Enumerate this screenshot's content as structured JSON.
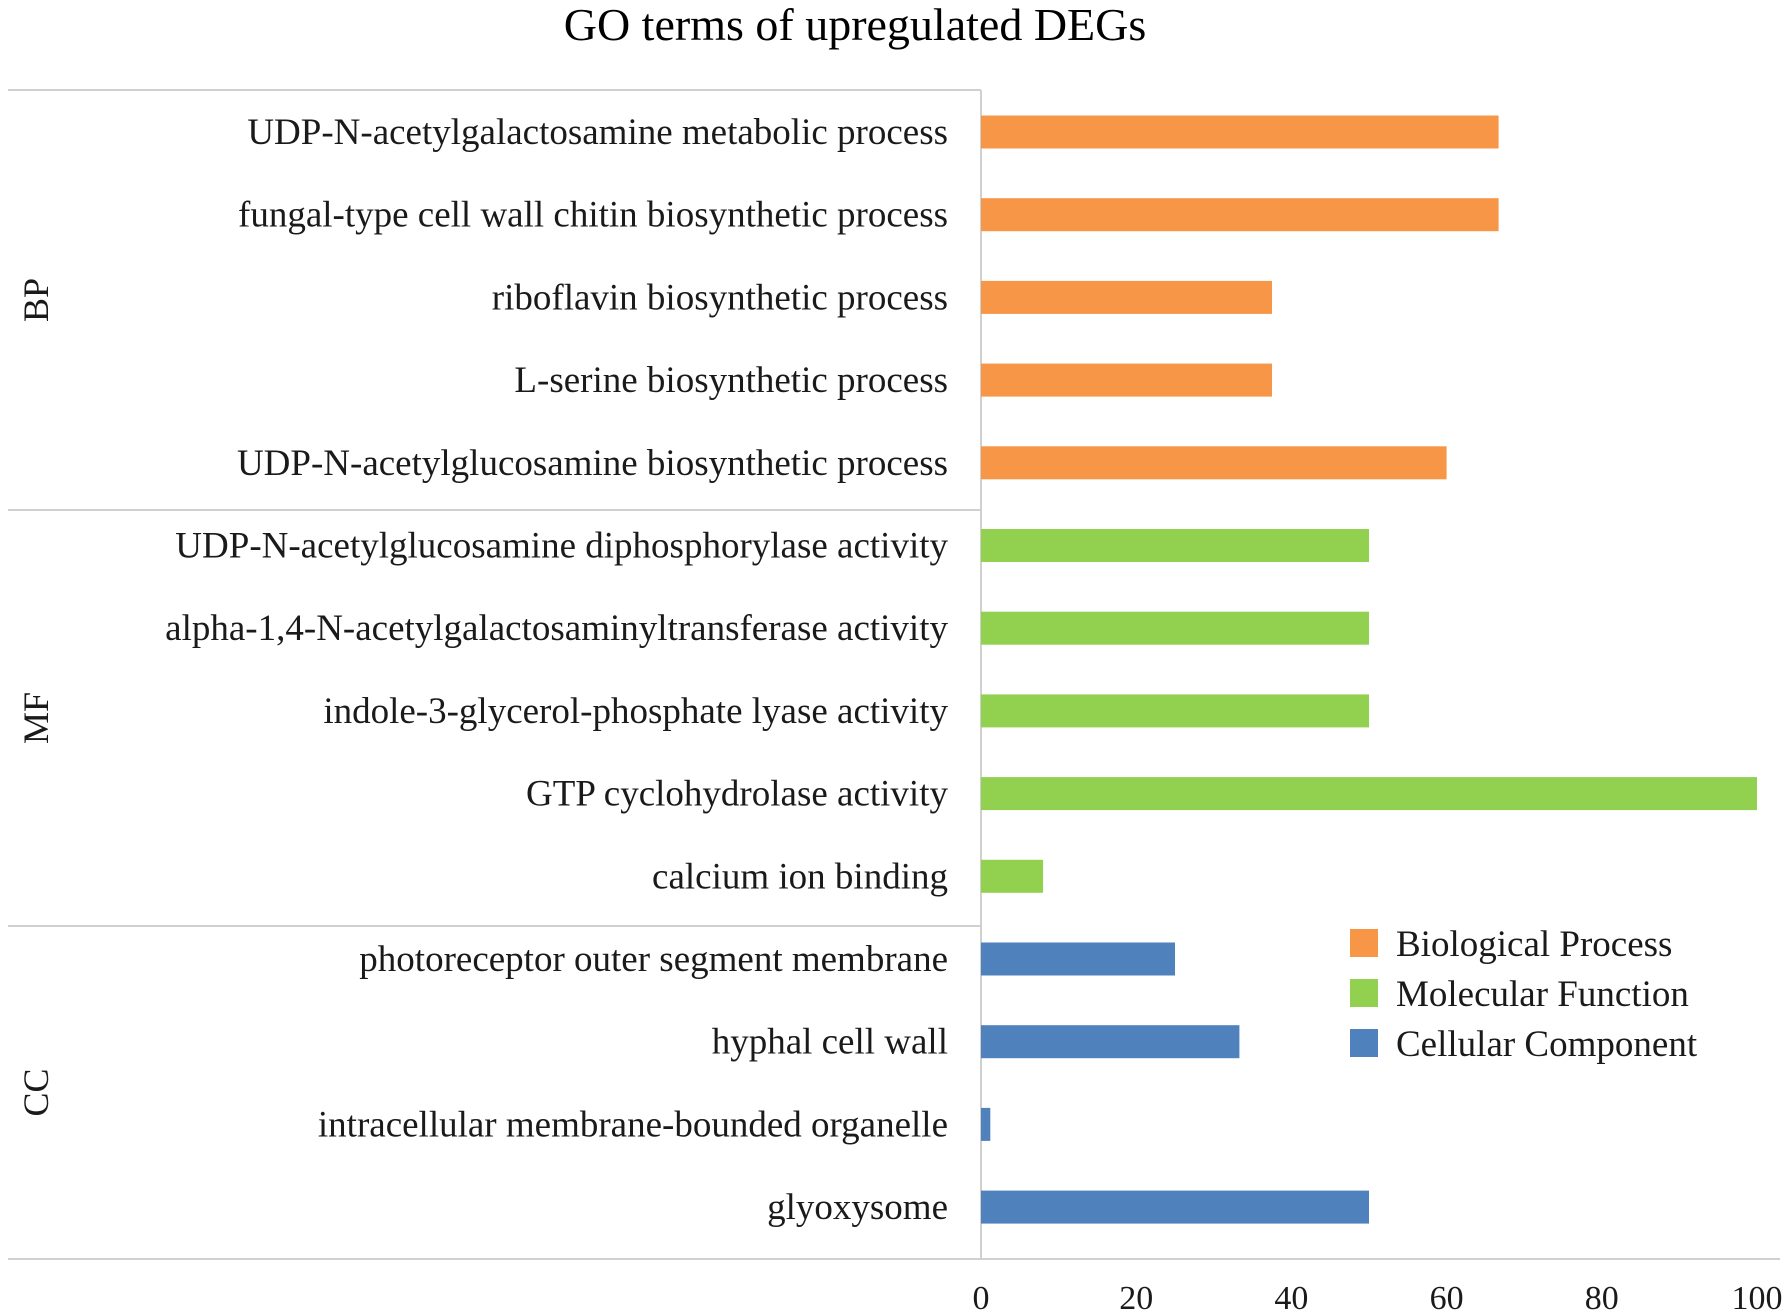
{
  "chart_data": {
    "type": "bar",
    "orientation": "horizontal",
    "title": "GO terms of upregulated DEGs",
    "xlabel": "",
    "ylabel": "",
    "xlim": [
      0,
      100
    ],
    "x_ticks": [
      0,
      20,
      40,
      60,
      80,
      100
    ],
    "grid": false,
    "legend_position": "bottom-right",
    "colors": {
      "Biological Process": "#F79646",
      "Molecular Function": "#92D050",
      "Cellular Component": "#4F81BD"
    },
    "groups": [
      {
        "code": "BP",
        "name": "Biological Process",
        "bars": [
          {
            "label": "UDP-N-acetylgalactosamine metabolic process",
            "value": 66.7
          },
          {
            "label": "fungal-type cell wall chitin biosynthetic process",
            "value": 66.7
          },
          {
            "label": "riboflavin biosynthetic process",
            "value": 37.5
          },
          {
            "label": "L-serine biosynthetic process",
            "value": 37.5
          },
          {
            "label": "UDP-N-acetylglucosamine biosynthetic process",
            "value": 60
          }
        ]
      },
      {
        "code": "MF",
        "name": "Molecular Function",
        "bars": [
          {
            "label": "UDP-N-acetylglucosamine diphosphorylase activity",
            "value": 50
          },
          {
            "label": "alpha-1,4-N-acetylgalactosaminyltransferase activity",
            "value": 50
          },
          {
            "label": "indole-3-glycerol-phosphate lyase activity",
            "value": 50
          },
          {
            "label": "GTP cyclohydrolase activity",
            "value": 100
          },
          {
            "label": "calcium ion binding",
            "value": 8
          }
        ]
      },
      {
        "code": "CC",
        "name": "Cellular Component",
        "bars": [
          {
            "label": "photoreceptor outer segment membrane",
            "value": 25
          },
          {
            "label": "hyphal cell wall",
            "value": 33.3
          },
          {
            "label": "intracellular membrane-bounded organelle",
            "value": 1.2
          },
          {
            "label": "glyoxysome",
            "value": 50
          }
        ]
      }
    ],
    "legend": [
      "Biological Process",
      "Molecular Function",
      "Cellular Component"
    ]
  }
}
